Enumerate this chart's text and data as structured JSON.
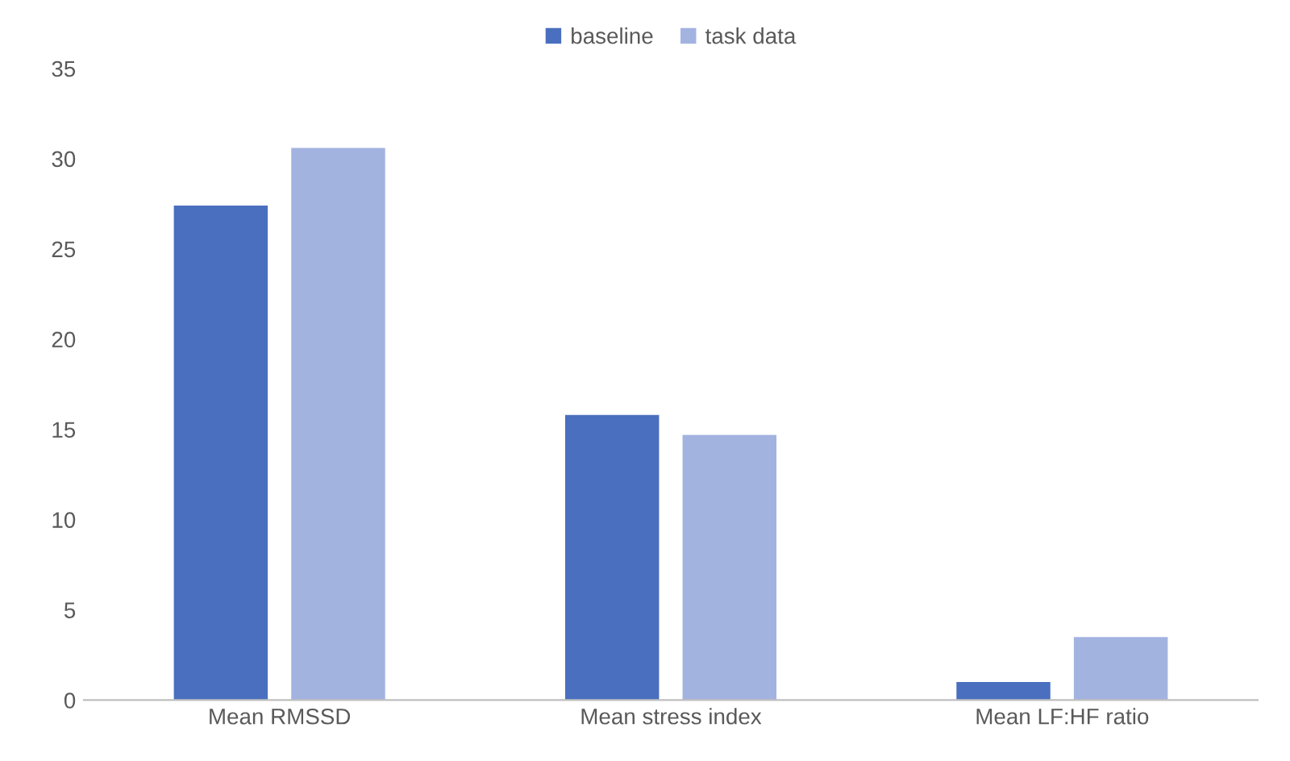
{
  "chart_data": {
    "type": "bar",
    "categories": [
      "Mean RMSSD",
      "Mean stress index",
      "Mean LF:HF ratio"
    ],
    "series": [
      {
        "name": "baseline",
        "color": "#4a6fbf",
        "values": [
          27.4,
          15.8,
          1.0
        ]
      },
      {
        "name": "task data",
        "color": "#a3b3e0",
        "values": [
          30.6,
          14.7,
          3.5
        ]
      }
    ],
    "ylim": [
      0,
      35
    ],
    "yticks": [
      0,
      5,
      10,
      15,
      20,
      25,
      30,
      35
    ],
    "grid": false,
    "legend": "top"
  }
}
